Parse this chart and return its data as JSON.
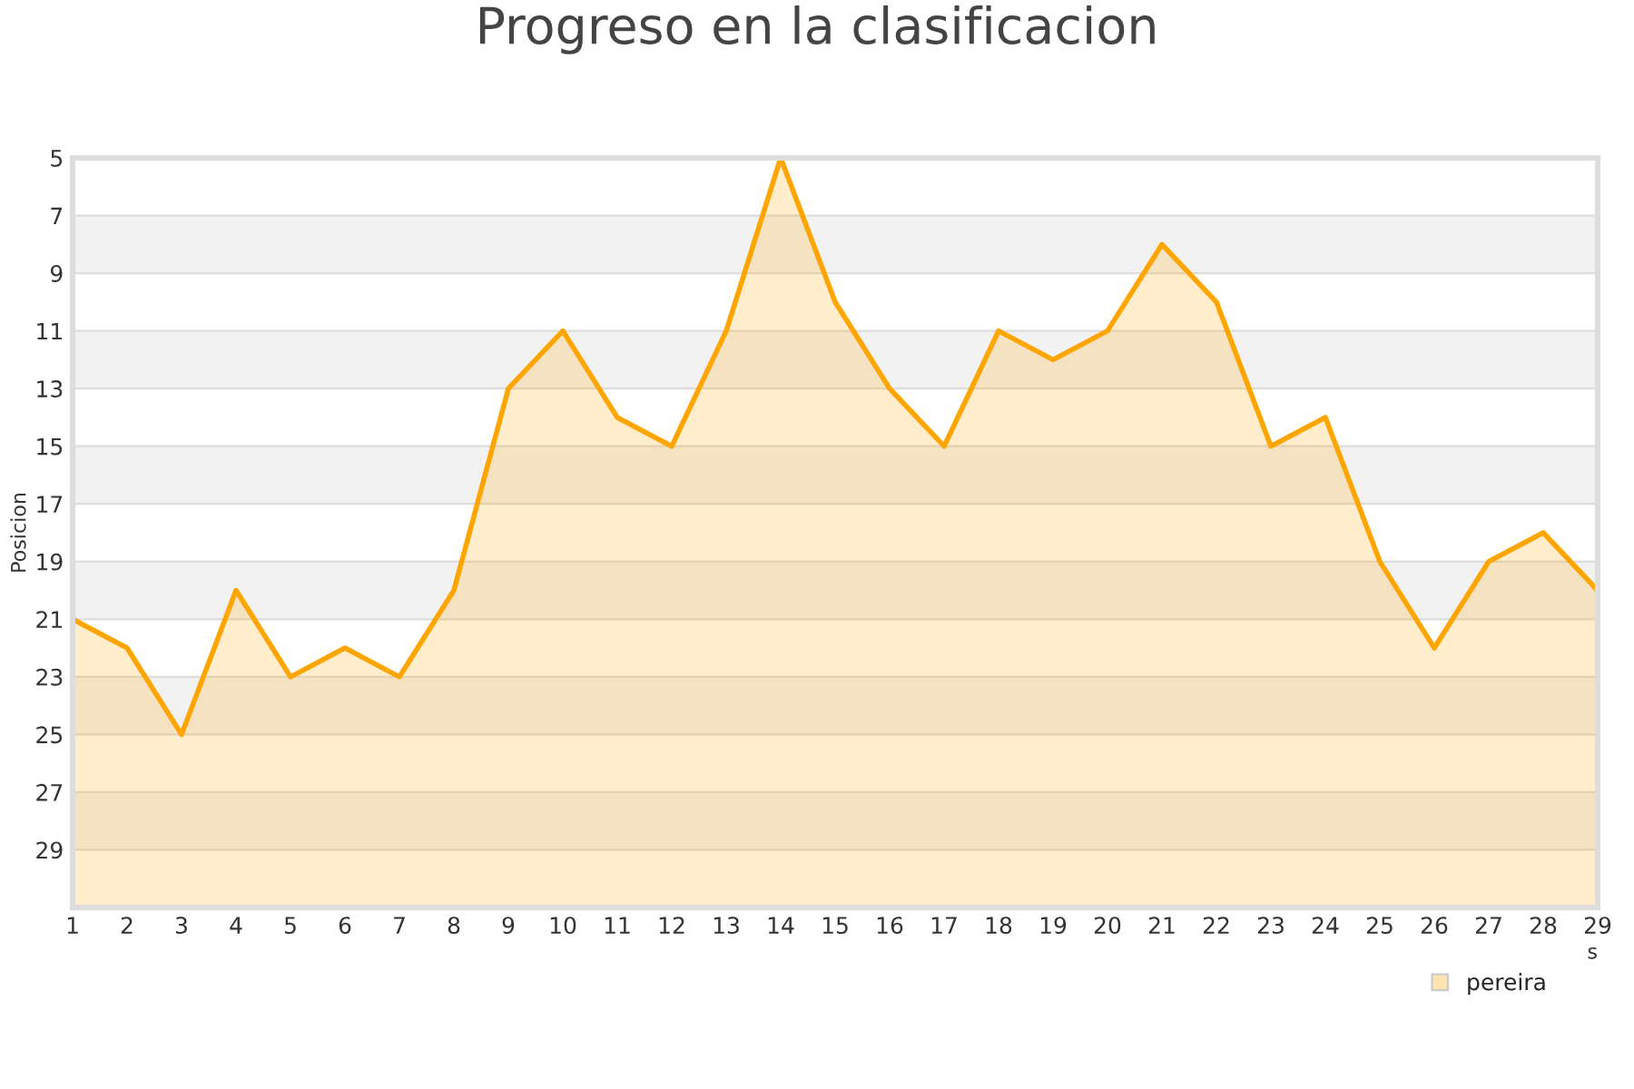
{
  "chart_data": {
    "type": "area",
    "title": "Progreso en la clasificacion",
    "ylabel": "Posicion",
    "xlabel": "s",
    "x": [
      1,
      2,
      3,
      4,
      5,
      6,
      7,
      8,
      9,
      10,
      11,
      12,
      13,
      14,
      15,
      16,
      17,
      18,
      19,
      20,
      21,
      22,
      23,
      24,
      25,
      26,
      27,
      28,
      29
    ],
    "series": [
      {
        "name": "pereira",
        "color": "#ffa500",
        "values": [
          21,
          22,
          25,
          20,
          23,
          22,
          23,
          20,
          13,
          11,
          14,
          15,
          11,
          5,
          10,
          13,
          15,
          11,
          12,
          11,
          8,
          10,
          15,
          14,
          19,
          22,
          19,
          18,
          20
        ]
      }
    ],
    "xlim": [
      1,
      29
    ],
    "xticks": [
      1,
      2,
      3,
      4,
      5,
      6,
      7,
      8,
      9,
      10,
      11,
      12,
      13,
      14,
      15,
      16,
      17,
      18,
      19,
      20,
      21,
      22,
      23,
      24,
      25,
      26,
      27,
      28,
      29
    ],
    "ylim": [
      31,
      5
    ],
    "yticks": [
      5,
      7,
      9,
      11,
      13,
      15,
      17,
      19,
      21,
      23,
      25,
      27,
      29
    ],
    "bands": [
      {
        "axis": "y",
        "from": 7,
        "to": 9,
        "color": "#f2f2f2"
      },
      {
        "axis": "y",
        "from": 11,
        "to": 13,
        "color": "#f2f2f2"
      },
      {
        "axis": "y",
        "from": 15,
        "to": 17,
        "color": "#f2f2f2"
      },
      {
        "axis": "y",
        "from": 19,
        "to": 21,
        "color": "#f2f2f2"
      },
      {
        "axis": "y",
        "from": 23,
        "to": 25,
        "color": "#f2f2f2"
      },
      {
        "axis": "y",
        "from": 27,
        "to": 29,
        "color": "#f2f2f2"
      }
    ],
    "grid": "y",
    "legend": "bottom right",
    "marker": "none",
    "line_style": "solid"
  }
}
